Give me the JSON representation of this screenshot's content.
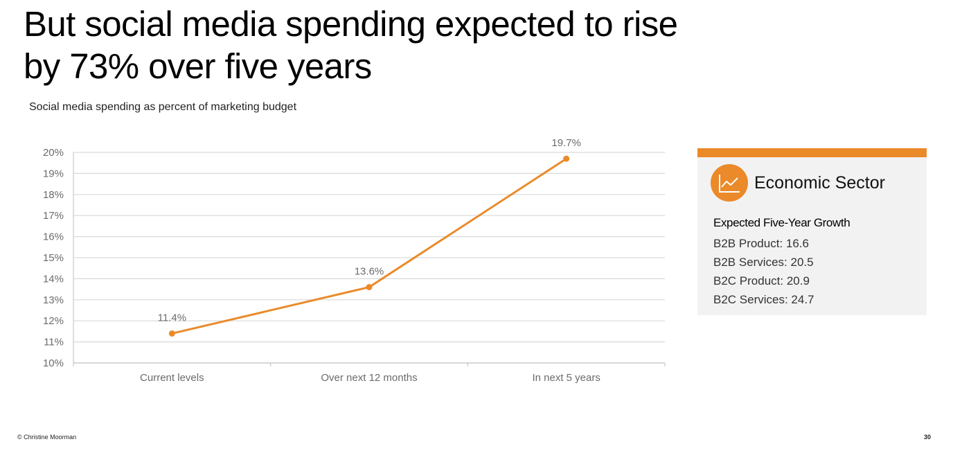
{
  "slide": {
    "title": "But social media spending expected to rise by 73% over five years",
    "subtitle": "Social media spending as percent of marketing budget",
    "footer_copyright": "© Christine Moorman",
    "page_number": "30"
  },
  "colors": {
    "accent": "#ea8a2a",
    "gridline": "#d9d9d9",
    "axis_text": "#6b6b6b",
    "panel_bg": "#f2f2f2"
  },
  "panel": {
    "icon": "line-chart-icon",
    "title": "Economic Sector",
    "heading": "Expected Five-Year Growth",
    "items": [
      {
        "label": "B2B Product: 16.6"
      },
      {
        "label": "B2B Services: 20.5"
      },
      {
        "label": "B2C Product: 20.9"
      },
      {
        "label": "B2C Services: 24.7"
      }
    ]
  },
  "chart_data": {
    "type": "line",
    "title": "Social media spending as percent of marketing budget",
    "xlabel": "",
    "ylabel": "",
    "categories": [
      "Current levels",
      "Over next 12 months",
      "In next 5 years"
    ],
    "series": [
      {
        "name": "Social media spending",
        "values": [
          11.4,
          13.6,
          19.7
        ],
        "color": "#ea8a2a"
      }
    ],
    "data_labels": [
      "11.4%",
      "13.6%",
      "19.7%"
    ],
    "ylim": [
      10,
      20
    ],
    "yticks": [
      10,
      11,
      12,
      13,
      14,
      15,
      16,
      17,
      18,
      19,
      20
    ],
    "ytick_labels": [
      "10%",
      "11%",
      "12%",
      "13%",
      "14%",
      "15%",
      "16%",
      "17%",
      "18%",
      "19%",
      "20%"
    ],
    "grid": true,
    "legend": "none"
  }
}
